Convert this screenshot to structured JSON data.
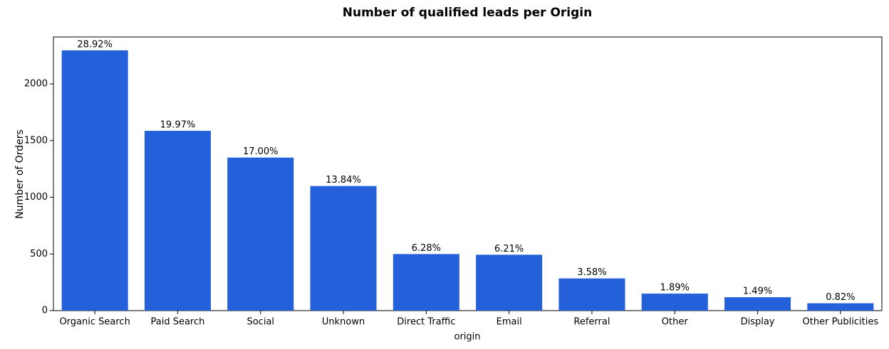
{
  "chart_data": {
    "type": "bar",
    "title": "Number of qualified leads per Origin",
    "x_label": "origin",
    "y_label": "Number of Orders",
    "categories": [
      "Organic Search",
      "Paid Search",
      "Social",
      "Unknown",
      "Direct Traffic",
      "Email",
      "Referral",
      "Other",
      "Display",
      "Other Publicities"
    ],
    "values": [
      2296,
      1586,
      1350,
      1099,
      499,
      493,
      284,
      150,
      118,
      65
    ],
    "annotations": [
      "28.92%",
      "19.97%",
      "17.00%",
      "13.84%",
      "6.28%",
      "6.21%",
      "3.58%",
      "1.89%",
      "1.49%",
      "0.82%"
    ],
    "color": "#2360d9",
    "ylim": [
      0,
      2414
    ],
    "yticks": [
      0,
      500,
      1000,
      1500,
      2000
    ],
    "grid": false
  }
}
